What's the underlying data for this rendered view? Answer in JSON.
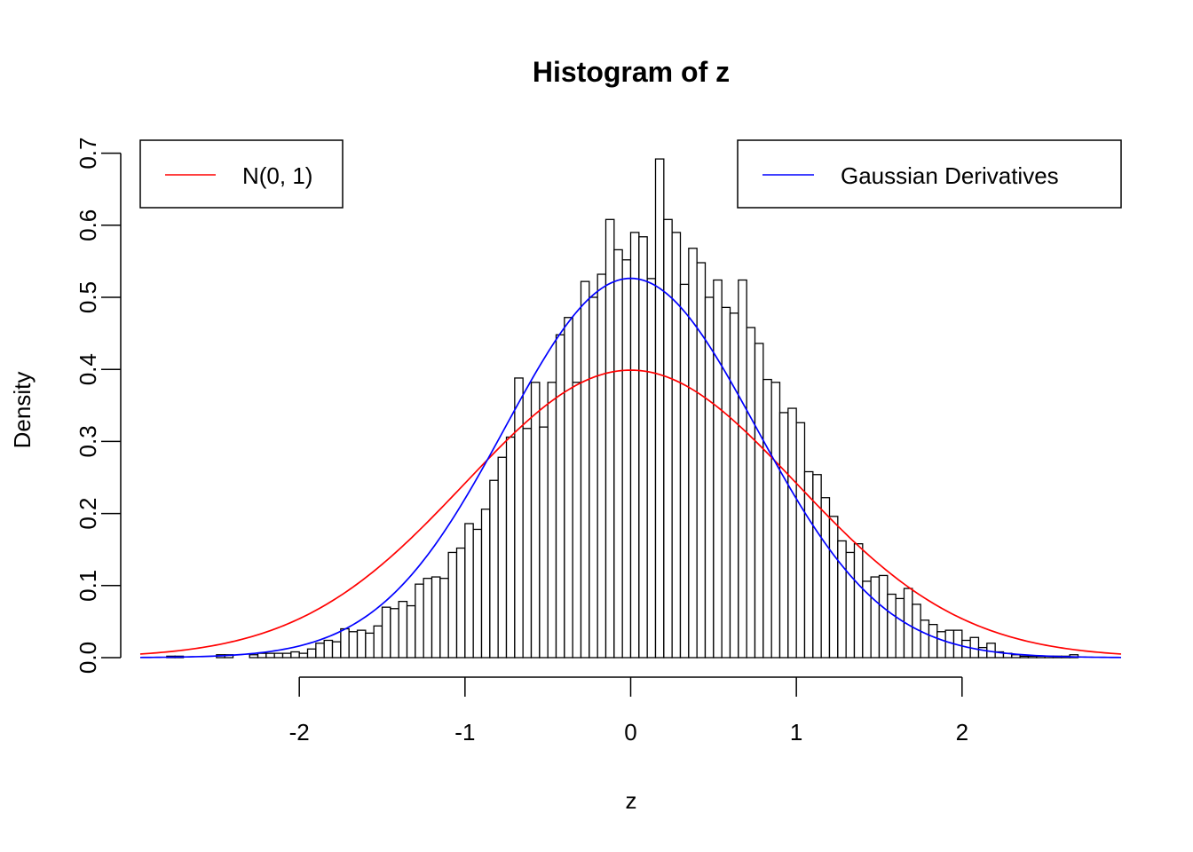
{
  "chart_data": {
    "type": "bar",
    "title": "Histogram of z",
    "xlabel": "z",
    "ylabel": "Density",
    "xlim": [
      -2.96,
      2.96
    ],
    "ylim": [
      0,
      0.7
    ],
    "x_ticks": [
      -2,
      -1,
      0,
      1,
      2
    ],
    "x_tick_labels": [
      "-2",
      "-1",
      "0",
      "1",
      "2"
    ],
    "y_ticks": [
      0,
      0.1,
      0.2,
      0.3,
      0.4,
      0.5,
      0.6,
      0.7
    ],
    "y_tick_labels": [
      "0.0",
      "0.1",
      "0.2",
      "0.3",
      "0.4",
      "0.5",
      "0.6",
      "0.7"
    ],
    "grid": false,
    "histogram": {
      "bin_width": 0.05,
      "bins_start": [
        -2.8,
        -2.75,
        -2.7,
        -2.65,
        -2.6,
        -2.55,
        -2.5,
        -2.45,
        -2.4,
        -2.35,
        -2.3,
        -2.25,
        -2.2,
        -2.15,
        -2.1,
        -2.05,
        -2.0,
        -1.95,
        -1.9,
        -1.85,
        -1.8,
        -1.75,
        -1.7,
        -1.65,
        -1.6,
        -1.55,
        -1.5,
        -1.45,
        -1.4,
        -1.35,
        -1.3,
        -1.25,
        -1.2,
        -1.15,
        -1.1,
        -1.05,
        -1.0,
        -0.95,
        -0.9,
        -0.85,
        -0.8,
        -0.75,
        -0.7,
        -0.65,
        -0.6,
        -0.55,
        -0.5,
        -0.45,
        -0.4,
        -0.35,
        -0.3,
        -0.25,
        -0.2,
        -0.15,
        -0.1,
        -0.05,
        0.0,
        0.05,
        0.1,
        0.15,
        0.2,
        0.25,
        0.3,
        0.35,
        0.4,
        0.45,
        0.5,
        0.55,
        0.6,
        0.65,
        0.7,
        0.75,
        0.8,
        0.85,
        0.9,
        0.95,
        1.0,
        1.05,
        1.1,
        1.15,
        1.2,
        1.25,
        1.3,
        1.35,
        1.4,
        1.45,
        1.5,
        1.55,
        1.6,
        1.65,
        1.7,
        1.75,
        1.8,
        1.85,
        1.9,
        1.95,
        2.0,
        2.05,
        2.1,
        2.15,
        2.2,
        2.25,
        2.3,
        2.35,
        2.4,
        2.45,
        2.5,
        2.55,
        2.6,
        2.65
      ],
      "density": [
        0.002,
        0.002,
        0.0,
        0.0,
        0.0,
        0.0,
        0.004,
        0.004,
        0.0,
        0.0,
        0.004,
        0.006,
        0.006,
        0.006,
        0.006,
        0.008,
        0.006,
        0.012,
        0.02,
        0.024,
        0.022,
        0.04,
        0.036,
        0.038,
        0.034,
        0.044,
        0.07,
        0.068,
        0.078,
        0.072,
        0.102,
        0.11,
        0.112,
        0.11,
        0.146,
        0.152,
        0.186,
        0.178,
        0.206,
        0.246,
        0.278,
        0.306,
        0.388,
        0.318,
        0.382,
        0.32,
        0.382,
        0.448,
        0.472,
        0.382,
        0.522,
        0.5,
        0.532,
        0.608,
        0.566,
        0.552,
        0.59,
        0.584,
        0.526,
        0.692,
        0.608,
        0.59,
        0.518,
        0.568,
        0.548,
        0.5,
        0.524,
        0.486,
        0.478,
        0.524,
        0.458,
        0.436,
        0.386,
        0.382,
        0.34,
        0.346,
        0.326,
        0.258,
        0.254,
        0.222,
        0.196,
        0.162,
        0.146,
        0.158,
        0.106,
        0.112,
        0.114,
        0.088,
        0.082,
        0.096,
        0.074,
        0.052,
        0.046,
        0.036,
        0.038,
        0.038,
        0.024,
        0.028,
        0.014,
        0.02,
        0.008,
        0.006,
        0.004,
        0.002,
        0.002,
        0.002,
        0.002,
        0.002,
        0.002,
        0.004
      ]
    },
    "series": [
      {
        "name": "N(0, 1)",
        "type": "line",
        "function": "normal",
        "mean": 0,
        "sd": 1,
        "color": "#ff0000"
      },
      {
        "name": "Gaussian Derivatives",
        "type": "line",
        "function": "normal",
        "mean": 0,
        "sd": 0.758,
        "color": "#0000ff"
      }
    ],
    "legend": [
      {
        "label": "N(0, 1)",
        "color": "#ff0000",
        "placement": "top-left"
      },
      {
        "label": "Gaussian Derivatives",
        "color": "#0000ff",
        "placement": "top-right"
      }
    ]
  }
}
